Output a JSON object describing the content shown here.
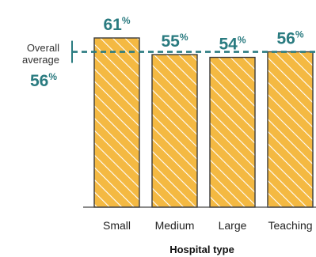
{
  "chart_data": {
    "type": "bar",
    "categories": [
      "Small",
      "Medium",
      "Large",
      "Teaching"
    ],
    "values": [
      61,
      55,
      54,
      56
    ],
    "value_suffix": "%",
    "xlabel": "Hospital type",
    "ylim": [
      0,
      61
    ],
    "grid": false,
    "bar_color": "#f4b942",
    "hatch_color": "#ffffff",
    "accent_color": "#2a7b80",
    "reference_line": {
      "label_line1": "Overall",
      "label_line2": "average",
      "value": 56,
      "suffix": "%",
      "style": "dashed"
    }
  }
}
